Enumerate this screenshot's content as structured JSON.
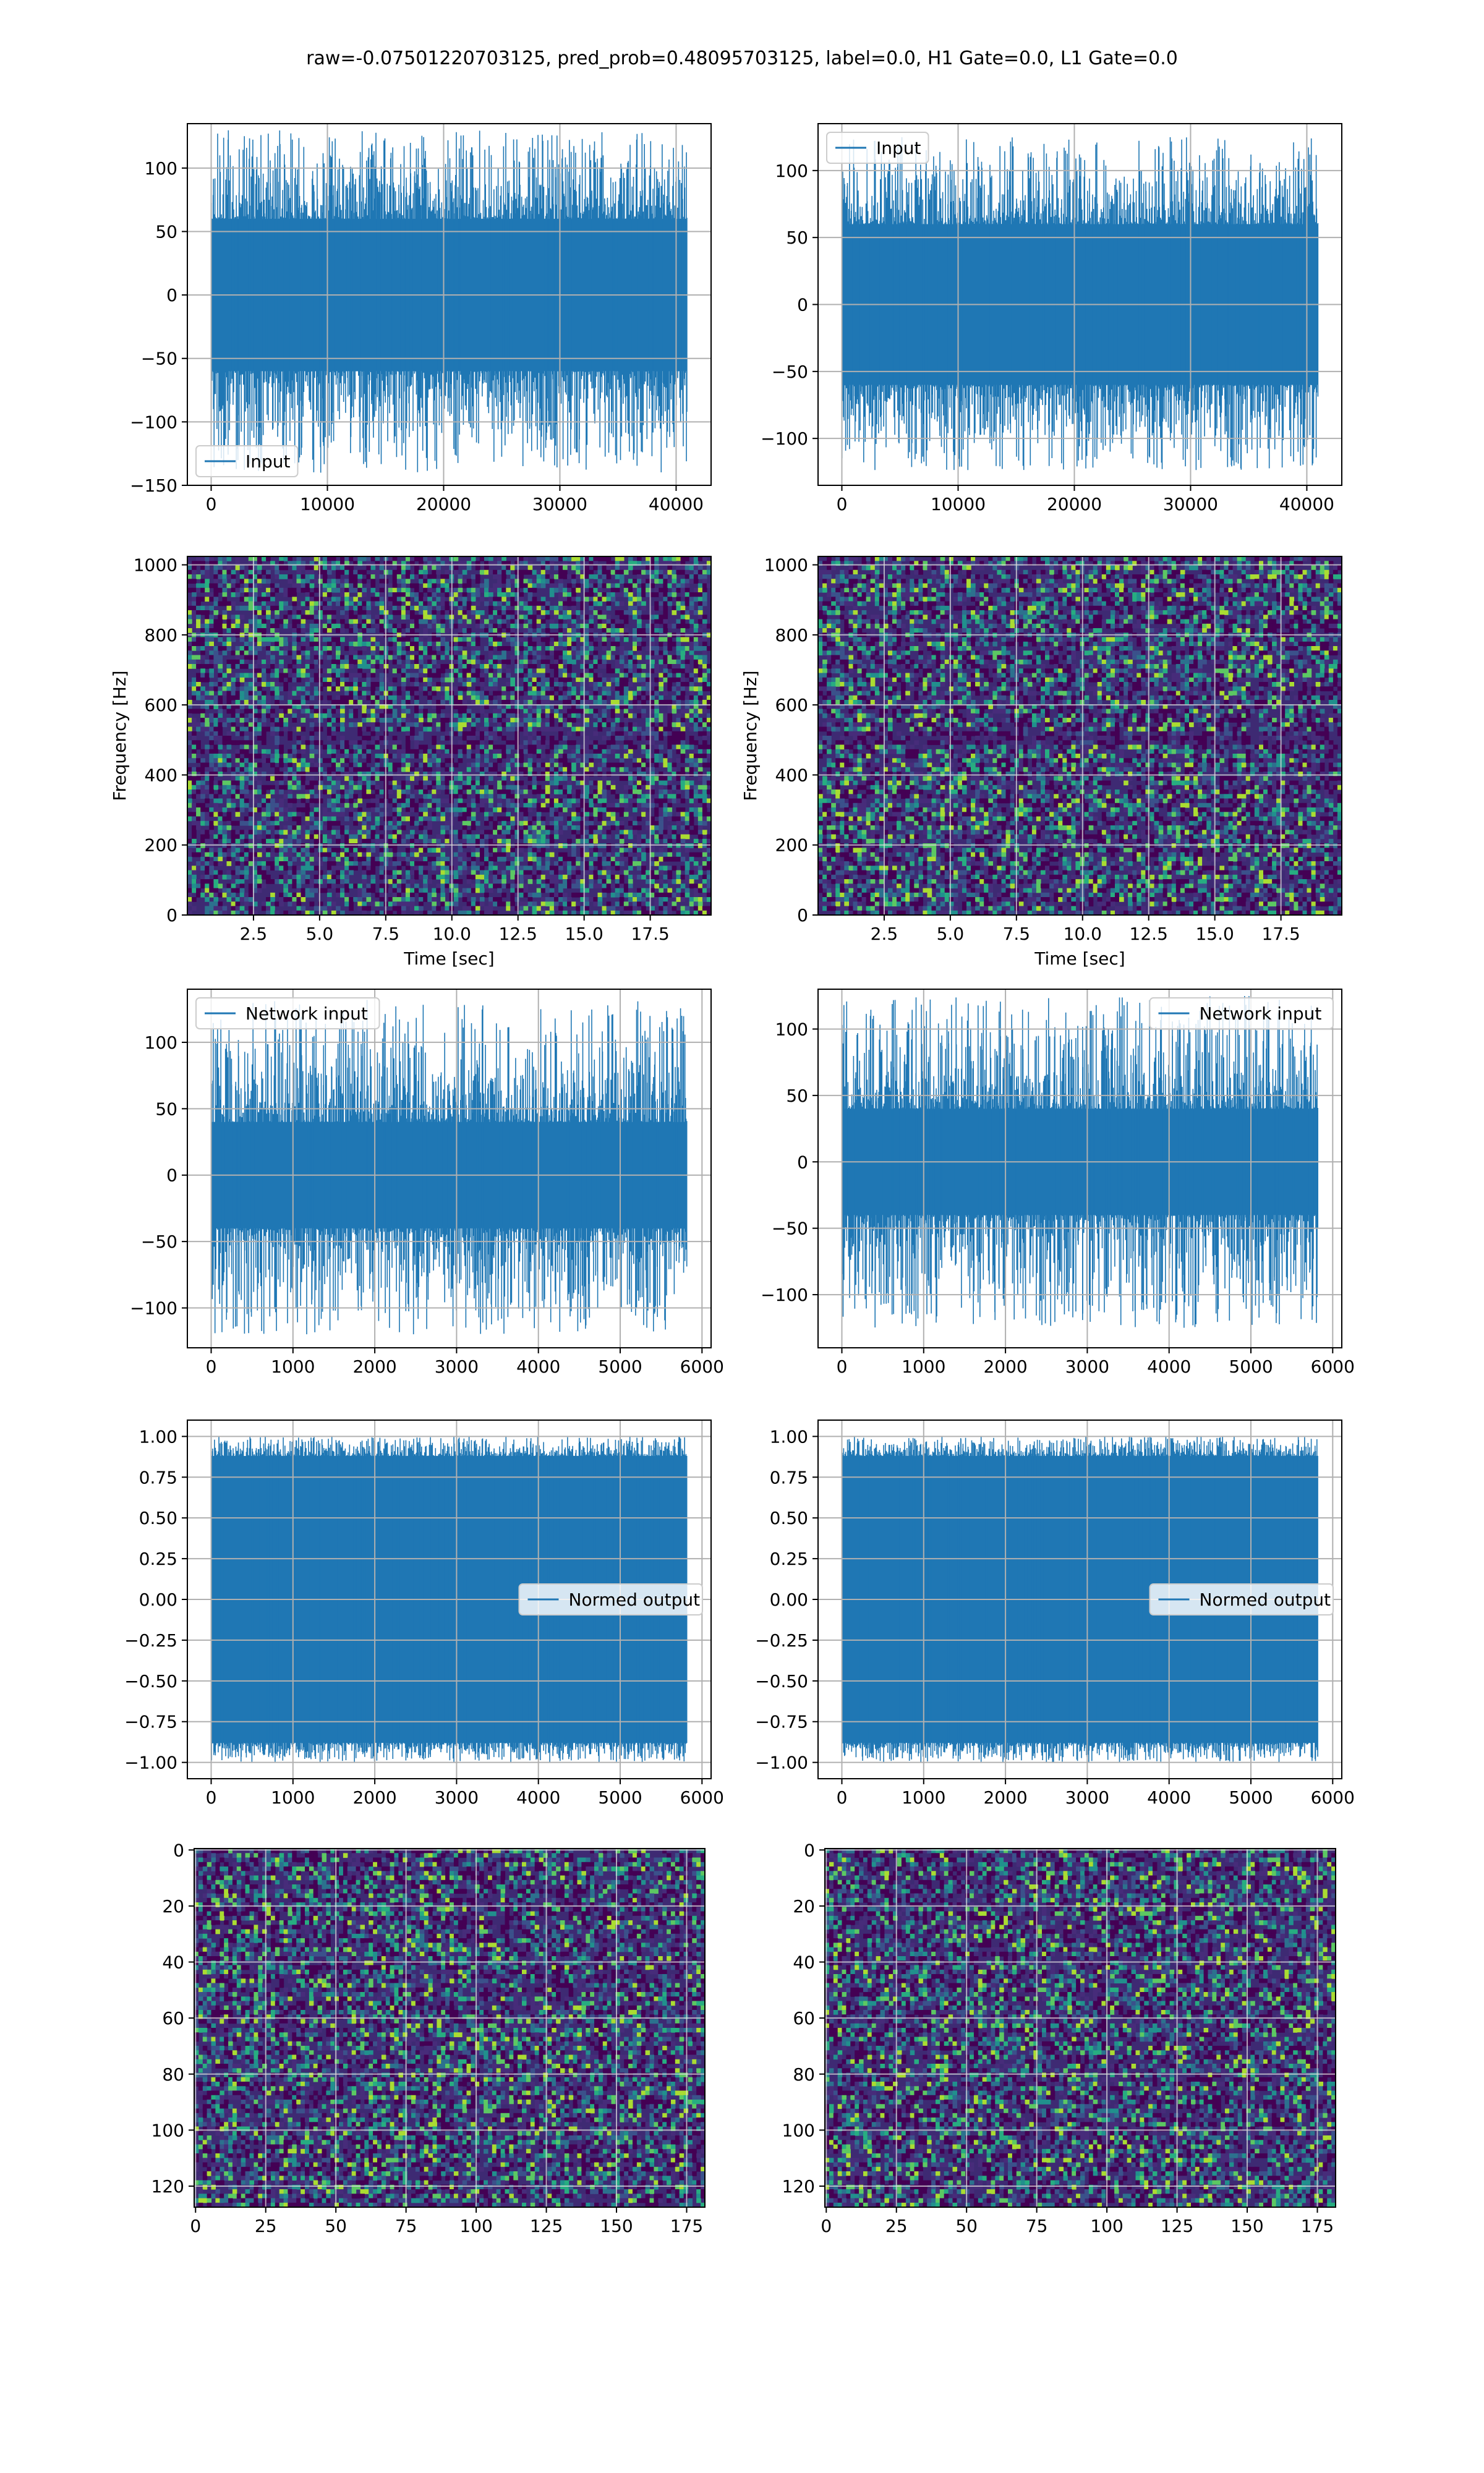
{
  "figure": {
    "suptitle": "raw=-0.07501220703125, pred_prob=0.48095703125, label=0.0, H1 Gate=0.0, L1 Gate=0.0"
  },
  "chart_data": [
    {
      "id": "input-h1",
      "type": "line",
      "legend": "Input",
      "legend_loc": "lower-left",
      "x_range": [
        0,
        40960
      ],
      "xlim": [
        -2048,
        43008
      ],
      "ylim": [
        -150,
        135
      ],
      "xticks": [
        0,
        10000,
        20000,
        30000,
        40000
      ],
      "yticks": [
        -150,
        -100,
        -50,
        0,
        50,
        100
      ],
      "envelope": {
        "core": 60,
        "peak_max": 130,
        "peak_min": -140
      },
      "color": "#1f77b4",
      "grid": true
    },
    {
      "id": "input-l1",
      "type": "line",
      "legend": "Input",
      "legend_loc": "upper-left",
      "x_range": [
        0,
        40960
      ],
      "xlim": [
        -2048,
        43008
      ],
      "ylim": [
        -135,
        135
      ],
      "xticks": [
        0,
        10000,
        20000,
        30000,
        40000
      ],
      "yticks": [
        -100,
        -50,
        0,
        50,
        100
      ],
      "envelope": {
        "core": 60,
        "peak_max": 125,
        "peak_min": -125
      },
      "color": "#1f77b4",
      "grid": true
    },
    {
      "id": "spectrogram-h1",
      "type": "heatmap",
      "xlabel": "Time [sec]",
      "ylabel": "Frequency [Hz]",
      "xlim": [
        0,
        19.8
      ],
      "ylim": [
        0,
        1024
      ],
      "xticks": [
        2.5,
        5.0,
        7.5,
        10.0,
        12.5,
        15.0,
        17.5
      ],
      "yticks": [
        0,
        200,
        400,
        600,
        800,
        1000
      ],
      "colormap": "viridis",
      "grid": true
    },
    {
      "id": "spectrogram-l1",
      "type": "heatmap",
      "xlabel": "Time [sec]",
      "ylabel": "Frequency [Hz]",
      "xlim": [
        0,
        19.8
      ],
      "ylim": [
        0,
        1024
      ],
      "xticks": [
        2.5,
        5.0,
        7.5,
        10.0,
        12.5,
        15.0,
        17.5
      ],
      "yticks": [
        0,
        200,
        400,
        600,
        800,
        1000
      ],
      "colormap": "viridis",
      "grid": true
    },
    {
      "id": "network-input-h1",
      "type": "line",
      "legend": "Network input",
      "legend_loc": "upper-left",
      "x_range": [
        0,
        5820
      ],
      "xlim": [
        -291,
        6111
      ],
      "ylim": [
        -130,
        140
      ],
      "xticks": [
        0,
        1000,
        2000,
        3000,
        4000,
        5000,
        6000
      ],
      "yticks": [
        -100,
        -50,
        0,
        50,
        100
      ],
      "envelope": {
        "core": 40,
        "peak_max": 132,
        "peak_min": -120
      },
      "color": "#1f77b4",
      "grid": true
    },
    {
      "id": "network-input-l1",
      "type": "line",
      "legend": "Network input",
      "legend_loc": "upper-right",
      "x_range": [
        0,
        5820
      ],
      "xlim": [
        -291,
        6111
      ],
      "ylim": [
        -140,
        130
      ],
      "xticks": [
        0,
        1000,
        2000,
        3000,
        4000,
        5000,
        6000
      ],
      "yticks": [
        -100,
        -50,
        0,
        50,
        100
      ],
      "envelope": {
        "core": 40,
        "peak_max": 125,
        "peak_min": -125
      },
      "color": "#1f77b4",
      "grid": true
    },
    {
      "id": "normed-output-h1",
      "type": "line",
      "legend": "Normed output",
      "legend_loc": "center-right",
      "x_range": [
        0,
        5820
      ],
      "xlim": [
        -291,
        6111
      ],
      "ylim": [
        -1.1,
        1.1
      ],
      "xticks": [
        0,
        1000,
        2000,
        3000,
        4000,
        5000,
        6000
      ],
      "yticks": [
        -1.0,
        -0.75,
        -0.5,
        -0.25,
        0.0,
        0.25,
        0.5,
        0.75,
        1.0
      ],
      "envelope": {
        "core": 0.88,
        "peak_max": 1.0,
        "peak_min": -1.0
      },
      "color": "#1f77b4",
      "grid": true
    },
    {
      "id": "normed-output-l1",
      "type": "line",
      "legend": "Normed output",
      "legend_loc": "center-right",
      "x_range": [
        0,
        5820
      ],
      "xlim": [
        -291,
        6111
      ],
      "ylim": [
        -1.1,
        1.1
      ],
      "xticks": [
        0,
        1000,
        2000,
        3000,
        4000,
        5000,
        6000
      ],
      "yticks": [
        -1.0,
        -0.75,
        -0.5,
        -0.25,
        0.0,
        0.25,
        0.5,
        0.75,
        1.0
      ],
      "envelope": {
        "core": 0.88,
        "peak_max": 1.0,
        "peak_min": -1.0
      },
      "color": "#1f77b4",
      "grid": true
    },
    {
      "id": "image-h1",
      "type": "heatmap",
      "xlim": [
        -0.5,
        181.5
      ],
      "ylim": [
        127.5,
        -0.5
      ],
      "xticks": [
        0,
        25,
        50,
        75,
        100,
        125,
        150,
        175
      ],
      "yticks": [
        0,
        20,
        40,
        60,
        80,
        100,
        120
      ],
      "colormap": "viridis",
      "grid": true
    },
    {
      "id": "image-l1",
      "type": "heatmap",
      "xlim": [
        -0.5,
        181.5
      ],
      "ylim": [
        127.5,
        -0.5
      ],
      "xticks": [
        0,
        25,
        50,
        75,
        100,
        125,
        150,
        175
      ],
      "yticks": [
        0,
        20,
        40,
        60,
        80,
        100,
        120
      ],
      "colormap": "viridis",
      "grid": true
    }
  ]
}
